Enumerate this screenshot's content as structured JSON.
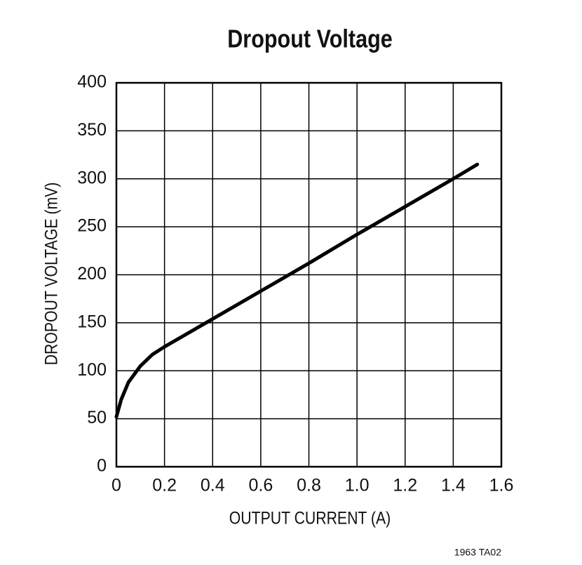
{
  "chart_data": {
    "type": "line",
    "title": "Dropout Voltage",
    "x_label": "OUTPUT CURRENT (A)",
    "y_label": "DROPOUT VOLTAGE (mV)",
    "note": "1963 TA02",
    "x": [
      0,
      0.02,
      0.05,
      0.1,
      0.15,
      0.2,
      0.4,
      0.6,
      0.8,
      1.0,
      1.2,
      1.4,
      1.5
    ],
    "series": [
      {
        "color": "#000000",
        "values": [
          52,
          70,
          88,
          105,
          117,
          125,
          154,
          183,
          212,
          242,
          271,
          300,
          315
        ]
      }
    ],
    "xlim": [
      0,
      1.6
    ],
    "xticks": [
      0,
      0.2,
      0.4,
      0.6,
      0.8,
      {
        "value": 1.0,
        "label": "1.0"
      },
      1.2,
      1.4,
      1.6
    ],
    "ylim": [
      0,
      400
    ],
    "yticks": [
      0,
      50,
      100,
      150,
      200,
      250,
      300,
      350,
      400
    ],
    "grid": true
  }
}
